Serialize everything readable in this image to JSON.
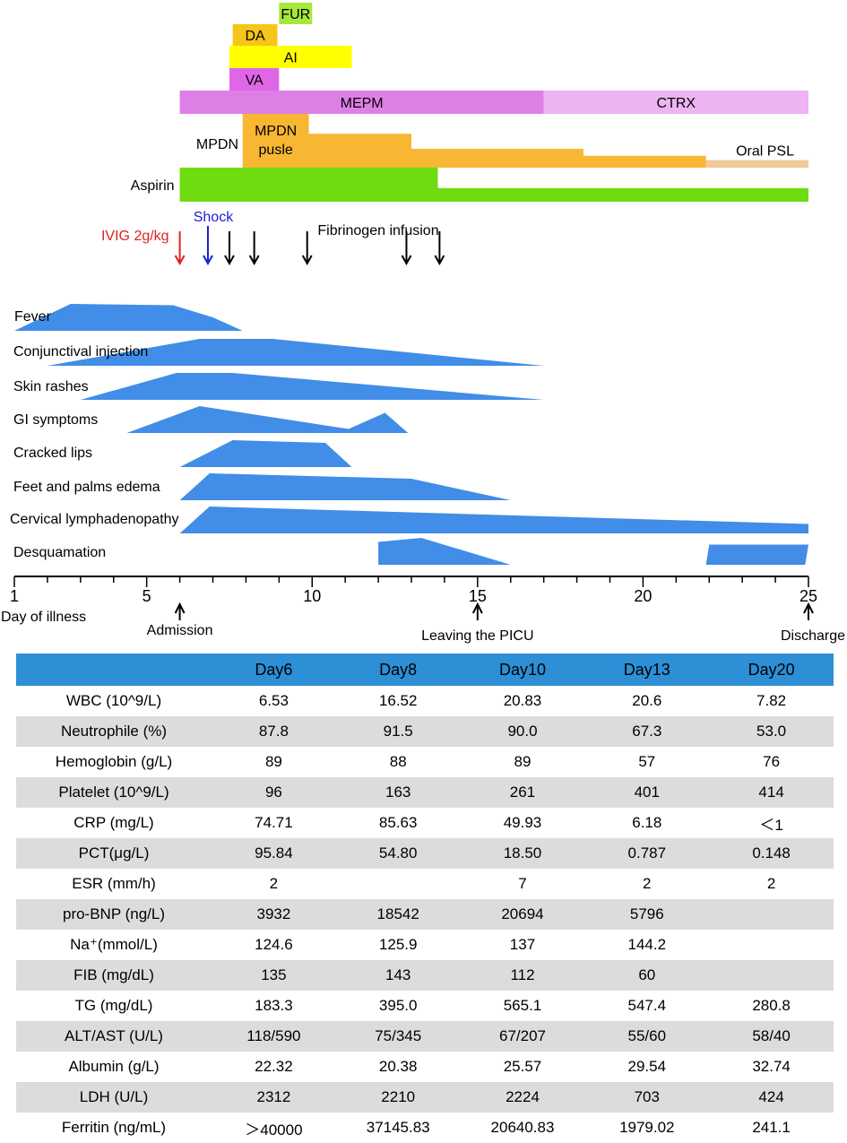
{
  "chart_data": [
    {
      "type": "timeline",
      "x_range": [
        1,
        25
      ],
      "x_ticks": [
        1,
        5,
        10,
        15,
        20,
        25
      ],
      "x_label": "Day of illness",
      "milestones": [
        {
          "day": 6,
          "label": "Admission"
        },
        {
          "day": 15,
          "label": "Leaving the PICU"
        },
        {
          "day": 25,
          "label": "Discharge"
        }
      ],
      "treatments": [
        {
          "name": "FUR",
          "segments": [
            {
              "start": 9.0,
              "end": 10.0,
              "level": 1
            }
          ],
          "color": "#a6e83a"
        },
        {
          "name": "DA",
          "segments": [
            {
              "start": 7.6,
              "end": 8.95,
              "level": 1
            }
          ],
          "color": "#f5c518"
        },
        {
          "name": "AI",
          "segments": [
            {
              "start": 7.5,
              "end": 11.2,
              "level": 1
            }
          ],
          "color": "#ffff00"
        },
        {
          "name": "VA",
          "segments": [
            {
              "start": 7.5,
              "end": 9.0,
              "level": 1
            }
          ],
          "color": "#e066e8"
        },
        {
          "name": "MEPM",
          "segments": [
            {
              "start": 6.0,
              "end": 17.0,
              "level": 1
            }
          ],
          "color": "#de7fe6"
        },
        {
          "name": "CTRX",
          "segments": [
            {
              "start": 17.0,
              "end": 25.0,
              "level": 1
            }
          ],
          "color": "#eeb3f2"
        },
        {
          "name": "MPDN pusle",
          "segments": [
            {
              "start": 7.9,
              "end": 9.9,
              "level": 1.0
            },
            {
              "start": 9.9,
              "end": 13.0,
              "level": 0.63
            },
            {
              "start": 13.0,
              "end": 18.2,
              "level": 0.35
            },
            {
              "start": 18.2,
              "end": 21.9,
              "level": 0.22
            }
          ],
          "color": "#f7b733"
        },
        {
          "name": "Oral PSL",
          "segments": [
            {
              "start": 21.9,
              "end": 25.0,
              "level": 0.14
            }
          ],
          "color": "#f0c99a"
        },
        {
          "name": "Aspirin",
          "segments": [
            {
              "start": 6.0,
              "end": 13.8,
              "level": 1.0
            },
            {
              "start": 13.8,
              "end": 25.0,
              "level": 0.4
            }
          ],
          "color": "#6fdc12"
        }
      ],
      "row_labels": {
        "mpdn": "MPDN"
      },
      "events": [
        {
          "label": "IVIG 2g/kg",
          "color": "#e02020",
          "days": [
            6.0
          ]
        },
        {
          "label": "Shock",
          "color": "#1c1cd4",
          "days": [
            6.85
          ]
        },
        {
          "label": "Fibrinogen infusion",
          "color": "#000000",
          "days": [
            7.5,
            8.25,
            9.85,
            12.85,
            13.85
          ]
        }
      ],
      "symptoms": [
        {
          "name": "Fever",
          "color": "#418de8",
          "profile": [
            [
              1.0,
              0
            ],
            [
              2.7,
              1.0
            ],
            [
              5.8,
              0.95
            ],
            [
              7.0,
              0.5
            ],
            [
              7.9,
              0
            ]
          ]
        },
        {
          "name": "Conjunctival injection",
          "color": "#418de8",
          "profile": [
            [
              2.0,
              0
            ],
            [
              6.6,
              1.0
            ],
            [
              8.8,
              1.0
            ],
            [
              17.0,
              0
            ]
          ]
        },
        {
          "name": "Skin rashes",
          "color": "#418de8",
          "profile": [
            [
              3.0,
              0
            ],
            [
              5.9,
              1.0
            ],
            [
              7.6,
              1.0
            ],
            [
              17.0,
              0
            ]
          ]
        },
        {
          "name": "GI symptoms",
          "color": "#418de8",
          "profile": [
            [
              4.4,
              0
            ],
            [
              6.6,
              1.0
            ],
            [
              11.1,
              0.15
            ],
            [
              12.2,
              0.75
            ],
            [
              12.9,
              0
            ]
          ]
        },
        {
          "name": "Cracked lips",
          "color": "#418de8",
          "profile": [
            [
              6.0,
              0
            ],
            [
              7.6,
              1.0
            ],
            [
              10.4,
              0.9
            ],
            [
              11.2,
              0
            ]
          ]
        },
        {
          "name": "Feet and palms edema",
          "color": "#418de8",
          "profile": [
            [
              6.0,
              0
            ],
            [
              6.9,
              1.0
            ],
            [
              13.0,
              0.8
            ],
            [
              16.0,
              0
            ]
          ]
        },
        {
          "name": "Cervical lymphadenopathy",
          "color": "#418de8",
          "profile": [
            [
              6.0,
              0
            ],
            [
              6.9,
              1.0
            ],
            [
              25.0,
              0.35
            ],
            [
              25.0,
              0
            ]
          ]
        },
        {
          "name": "Desquamation",
          "color": "#418de8",
          "segments": [
            [
              [
                12.0,
                0
              ],
              [
                12.0,
                0.85
              ],
              [
                13.3,
                1.0
              ],
              [
                16.0,
                0
              ]
            ],
            [
              [
                21.9,
                0
              ],
              [
                22.0,
                0.75
              ],
              [
                25.0,
                0.75
              ],
              [
                24.9,
                0
              ]
            ]
          ]
        }
      ]
    },
    {
      "type": "table",
      "columns": [
        "",
        "Day6",
        "Day8",
        "Day10",
        "Day13",
        "Day20"
      ],
      "rows": [
        {
          "label": "WBC (10^9/L)",
          "values": [
            "6.53",
            "16.52",
            "20.83",
            "20.6",
            "7.82"
          ]
        },
        {
          "label": "Neutrophile (%)",
          "values": [
            "87.8",
            "91.5",
            "90.0",
            "67.3",
            "53.0"
          ]
        },
        {
          "label": "Hemoglobin (g/L)",
          "values": [
            "89",
            "88",
            "89",
            "57",
            "76"
          ]
        },
        {
          "label": "Platelet (10^9/L)",
          "values": [
            "96",
            "163",
            "261",
            "401",
            "414"
          ]
        },
        {
          "label": "CRP (mg/L)",
          "values": [
            "74.71",
            "85.63",
            "49.93",
            "6.18",
            "＜1"
          ]
        },
        {
          "label": "PCT(μg/L)",
          "values": [
            "95.84",
            "54.80",
            "18.50",
            "0.787",
            "0.148"
          ]
        },
        {
          "label": "ESR (mm/h)",
          "values": [
            "2",
            "",
            "7",
            "2",
            "2"
          ]
        },
        {
          "label": "pro-BNP (ng/L)",
          "values": [
            "3932",
            "18542",
            "20694",
            "5796",
            ""
          ]
        },
        {
          "label": "Na⁺(mmol/L)",
          "values": [
            "124.6",
            "125.9",
            "137",
            "144.2",
            ""
          ]
        },
        {
          "label": "FIB (mg/dL)",
          "values": [
            "135",
            "143",
            "112",
            "60",
            ""
          ]
        },
        {
          "label": "TG (mg/dL)",
          "values": [
            "183.3",
            "395.0",
            "565.1",
            "547.4",
            "280.8"
          ]
        },
        {
          "label": "ALT/AST (U/L)",
          "values": [
            "118/590",
            "75/345",
            "67/207",
            "55/60",
            "58/40"
          ]
        },
        {
          "label": "Albumin (g/L)",
          "values": [
            "22.32",
            "20.38",
            "25.57",
            "29.54",
            "32.74"
          ]
        },
        {
          "label": "LDH (U/L)",
          "values": [
            "2312",
            "2210",
            "2224",
            "703",
            "424"
          ]
        },
        {
          "label": "Ferritin (ng/mL)",
          "values": [
            "＞40000",
            "37145.83",
            "20640.83",
            "1979.02",
            "241.1"
          ]
        }
      ]
    }
  ]
}
